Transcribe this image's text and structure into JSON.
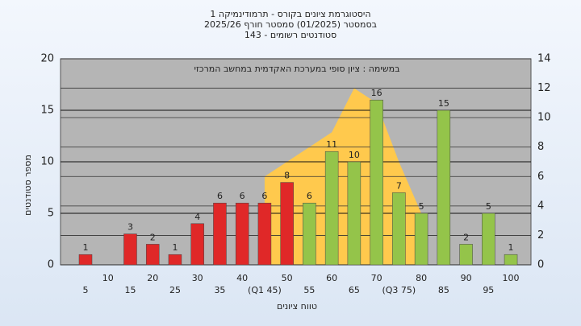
{
  "chart_data": {
    "type": "bar",
    "title_lines": [
      "היסטוגרמת ציונים בקורס - תרמודינמיקה 1",
      "בסמסטר  (01/2025)  סמסטר חורף 2025/26",
      "סטודנטים רשומים - 143"
    ],
    "annotation": "במשימה : ציון סופי במערכת האקדמית במחשב המרכזי",
    "y_label": "מספר סטודנטים",
    "x_label": "טווח ציונים",
    "categories": [
      "5",
      "10",
      "15",
      "20",
      "25",
      "30",
      "35",
      "40",
      "(Q1 45)",
      "50",
      "55",
      "60",
      "65",
      "70",
      "(Q3 75)",
      "80",
      "85",
      "90",
      "95",
      "100"
    ],
    "values": [
      1,
      0,
      3,
      2,
      1,
      4,
      6,
      6,
      6,
      8,
      6,
      11,
      10,
      16,
      7,
      5,
      15,
      2,
      5,
      1
    ],
    "colors": [
      "#e02828",
      "#e02828",
      "#e02828",
      "#e02828",
      "#e02828",
      "#e02828",
      "#e02828",
      "#e02828",
      "#e02828",
      "#e02828",
      "#94c44a",
      "#94c44a",
      "#94c44a",
      "#94c44a",
      "#94c44a",
      "#94c44a",
      "#94c44a",
      "#94c44a",
      "#94c44a",
      "#94c44a"
    ],
    "area": {
      "axis": "y2",
      "color": "#ffc94d",
      "from_index": 8,
      "values": [
        6,
        7,
        8,
        9,
        12,
        11,
        7,
        3.5
      ]
    },
    "ylim": [
      0,
      20
    ],
    "yticks": [
      0,
      5,
      10,
      15,
      20
    ],
    "y2lim": [
      0,
      14
    ],
    "y2ticks": [
      0,
      2,
      4,
      6,
      8,
      10,
      12,
      14
    ],
    "grid": true
  }
}
